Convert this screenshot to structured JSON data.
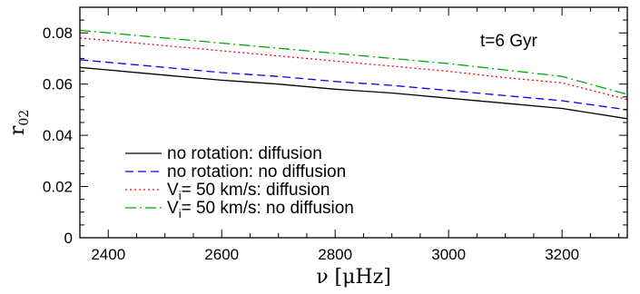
{
  "chart_data": {
    "type": "line",
    "title": "",
    "xlabel": "ν [μHz]",
    "ylabel": "r",
    "ylabel_subscript": "02",
    "xlim": [
      2350,
      3315
    ],
    "ylim": [
      0,
      0.09
    ],
    "xticks": [
      2400,
      2600,
      2800,
      3000,
      3200
    ],
    "yticks": [
      0,
      0.02,
      0.04,
      0.06,
      0.08
    ],
    "xtick_labels": [
      "2400",
      "2600",
      "2800",
      "3000",
      "3200"
    ],
    "ytick_labels": [
      "0",
      "0.02",
      "0.04",
      "0.06",
      "0.08"
    ],
    "annotation": "t=6 Gyr",
    "legend_position": "lower-left",
    "grid": false,
    "series": [
      {
        "name": "no rotation: diffusion",
        "style": "solid",
        "color": "#000000",
        "x": [
          2350,
          2400,
          2500,
          2600,
          2700,
          2800,
          2900,
          3000,
          3100,
          3200,
          3315
        ],
        "y": [
          0.0665,
          0.0655,
          0.0635,
          0.0615,
          0.06,
          0.058,
          0.0565,
          0.0545,
          0.0525,
          0.0505,
          0.0465
        ]
      },
      {
        "name": "no rotation: no diffusion",
        "style": "dashed",
        "color": "#0000ff",
        "x": [
          2350,
          2400,
          2500,
          2600,
          2700,
          2800,
          2900,
          3000,
          3100,
          3200,
          3315
        ],
        "y": [
          0.0695,
          0.0685,
          0.0665,
          0.0645,
          0.063,
          0.061,
          0.0595,
          0.0575,
          0.0555,
          0.0535,
          0.05
        ]
      },
      {
        "name": "V_i= 50 km/s: diffusion",
        "style": "dotted",
        "color": "#ff0000",
        "x": [
          2350,
          2400,
          2500,
          2600,
          2700,
          2800,
          2900,
          3000,
          3100,
          3200,
          3315
        ],
        "y": [
          0.078,
          0.077,
          0.075,
          0.073,
          0.071,
          0.069,
          0.067,
          0.065,
          0.0625,
          0.0605,
          0.054
        ]
      },
      {
        "name": "V_i= 50 km/s: no diffusion",
        "style": "dashdot",
        "color": "#00aa00",
        "x": [
          2350,
          2400,
          2500,
          2600,
          2700,
          2800,
          2900,
          3000,
          3100,
          3200,
          3315
        ],
        "y": [
          0.081,
          0.08,
          0.078,
          0.076,
          0.074,
          0.072,
          0.07,
          0.068,
          0.0655,
          0.063,
          0.056
        ]
      }
    ],
    "legend": [
      {
        "text": "no rotation: diffusion",
        "series": 0
      },
      {
        "text": "no rotation: no diffusion",
        "series": 1
      },
      {
        "prefix": "V",
        "sub": "i",
        "text": "= 50 km/s: diffusion",
        "series": 2
      },
      {
        "prefix": "V",
        "sub": "i",
        "text": "= 50 km/s: no diffusion",
        "series": 3
      }
    ]
  }
}
